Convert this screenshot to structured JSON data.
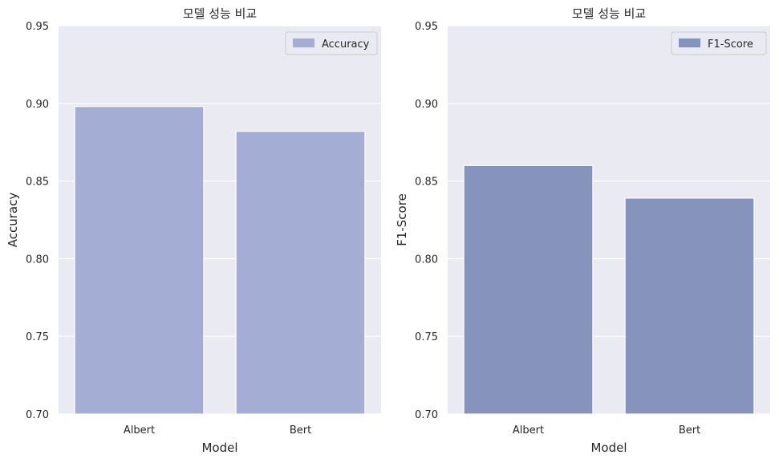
{
  "chart_data": [
    {
      "type": "bar",
      "title": "모델 성능 비교",
      "xlabel": "Model",
      "ylabel": "Accuracy",
      "categories": [
        "Albert",
        "Bert"
      ],
      "series": [
        {
          "name": "Accuracy",
          "values": [
            0.898,
            0.882
          ]
        }
      ],
      "ylim": [
        0.7,
        0.95
      ],
      "yticks": [
        "0.70",
        "0.75",
        "0.80",
        "0.85",
        "0.90",
        "0.95"
      ],
      "color": "#a4add3",
      "legend": "top-right",
      "grid": true
    },
    {
      "type": "bar",
      "title": "모델 성능 비교",
      "xlabel": "Model",
      "ylabel": "F1-Score",
      "categories": [
        "Albert",
        "Bert"
      ],
      "series": [
        {
          "name": "F1-Score",
          "values": [
            0.86,
            0.839
          ]
        }
      ],
      "ylim": [
        0.7,
        0.95
      ],
      "yticks": [
        "0.70",
        "0.75",
        "0.80",
        "0.85",
        "0.90",
        "0.95"
      ],
      "color": "#8593bd",
      "legend": "top-right",
      "grid": true
    }
  ],
  "style": {
    "plot_background": "#eaeaf2",
    "grid_color": "#ffffff"
  }
}
